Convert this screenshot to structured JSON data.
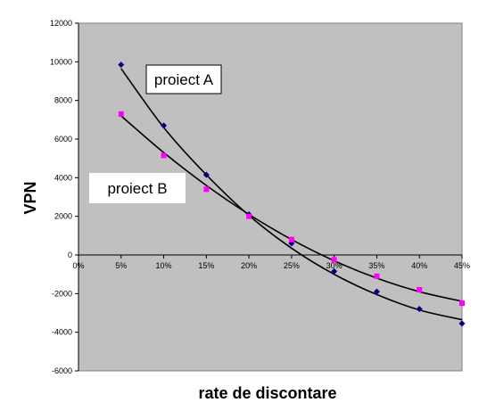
{
  "chart_data": {
    "type": "scatter",
    "xlabel": "rate de discontare",
    "ylabel": "VPN",
    "x_ticks": [
      "0%",
      "5%",
      "10%",
      "15%",
      "20%",
      "25%",
      "30%",
      "35%",
      "40%",
      "45%"
    ],
    "y_ticks": [
      "-6000",
      "-4000",
      "-2000",
      "0",
      "2000",
      "4000",
      "6000",
      "8000",
      "10000",
      "12000"
    ],
    "xlim": [
      0,
      45
    ],
    "ylim": [
      -6000,
      12000
    ],
    "x": [
      5,
      10,
      15,
      20,
      25,
      30,
      35,
      40,
      45
    ],
    "series": [
      {
        "values": [
          9850,
          6700,
          4150,
          2100,
          600,
          -850,
          -1900,
          -2800,
          -3550
        ],
        "color": "#00007f",
        "marker": "diamond",
        "trendline_type": "polynomial-2",
        "trendline": [
          {
            "x": 5,
            "y": 9650
          },
          {
            "x": 10,
            "y": 6600
          },
          {
            "x": 15,
            "y": 4150
          },
          {
            "x": 20,
            "y": 2050
          },
          {
            "x": 25,
            "y": 350
          },
          {
            "x": 30,
            "y": -1000
          },
          {
            "x": 35,
            "y": -2050
          },
          {
            "x": 40,
            "y": -2850
          },
          {
            "x": 45,
            "y": -3350
          }
        ]
      },
      {
        "values": [
          7300,
          5150,
          3400,
          2000,
          800,
          -250,
          -1100,
          -1800,
          -2500
        ],
        "color": "#ff00ff",
        "marker": "square",
        "trendline_type": "polynomial-2",
        "trendline": [
          {
            "x": 5,
            "y": 7200
          },
          {
            "x": 10,
            "y": 5300
          },
          {
            "x": 15,
            "y": 3600
          },
          {
            "x": 20,
            "y": 2100
          },
          {
            "x": 25,
            "y": 800
          },
          {
            "x": 30,
            "y": -300
          },
          {
            "x": 35,
            "y": -1200
          },
          {
            "x": 40,
            "y": -1900
          },
          {
            "x": 45,
            "y": -2400
          }
        ]
      }
    ],
    "annotations": [
      {
        "text": "proiect A"
      },
      {
        "text": "proiect B"
      }
    ],
    "plot_background": "#c0c0c0",
    "gridlines": false,
    "legend": "none"
  }
}
